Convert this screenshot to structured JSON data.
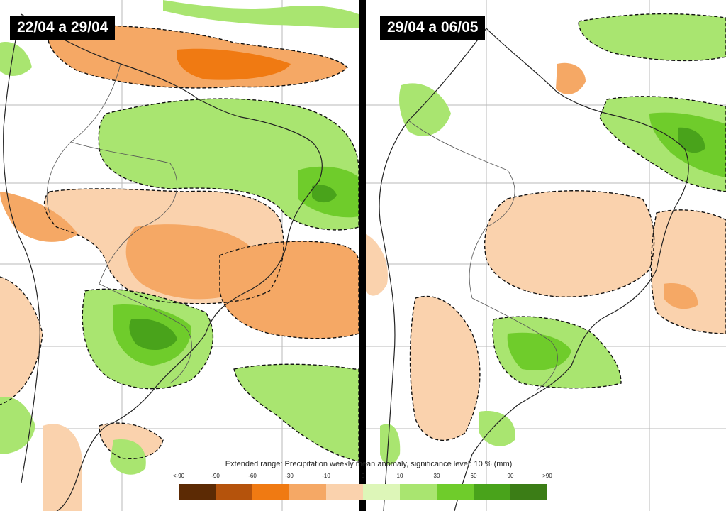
{
  "panels": [
    {
      "label": "22/04 a 29/04"
    },
    {
      "label": "29/04 a 06/05"
    }
  ],
  "legend": {
    "title": "Extended range: Precipitation weekly mean anomaly, significance level: 10 % (mm)",
    "ticks": [
      "<-90",
      "-90",
      "-60",
      "-30",
      "-10",
      "0",
      "10",
      "30",
      "60",
      "90",
      ">90"
    ],
    "colors": [
      "#5c2a04",
      "#b5530c",
      "#f07a12",
      "#f5a865",
      "#fad2ad",
      "#ddf6b8",
      "#a9e570",
      "#6fcc2b",
      "#49a31b",
      "#3b7d16"
    ]
  }
}
